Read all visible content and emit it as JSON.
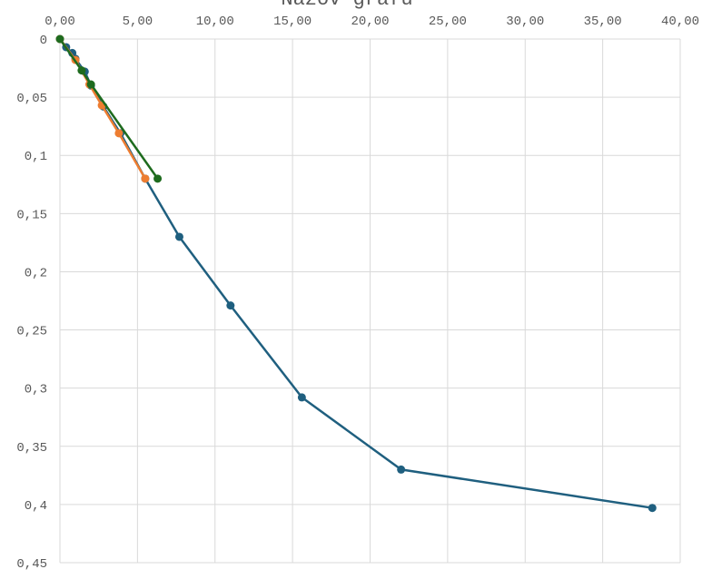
{
  "chart_data": {
    "type": "line",
    "title": "Názov grafu",
    "xlabel": "",
    "ylabel": "",
    "xlim": [
      0,
      40
    ],
    "ylim": [
      0,
      0.45
    ],
    "x_axis_position": "top",
    "y_axis_inverted": true,
    "grid": true,
    "x_ticks": [
      {
        "value": 0,
        "label": "0,00"
      },
      {
        "value": 5,
        "label": "5,00"
      },
      {
        "value": 10,
        "label": "10,00"
      },
      {
        "value": 15,
        "label": "15,00"
      },
      {
        "value": 20,
        "label": "20,00"
      },
      {
        "value": 25,
        "label": "25,00"
      },
      {
        "value": 30,
        "label": "30,00"
      },
      {
        "value": 35,
        "label": "35,00"
      },
      {
        "value": 40,
        "label": "40,00"
      }
    ],
    "y_ticks": [
      {
        "value": 0,
        "label": "0"
      },
      {
        "value": 0.05,
        "label": "0,05"
      },
      {
        "value": 0.1,
        "label": "0,1"
      },
      {
        "value": 0.15,
        "label": "0,15"
      },
      {
        "value": 0.2,
        "label": "0,2"
      },
      {
        "value": 0.25,
        "label": "0,25"
      },
      {
        "value": 0.3,
        "label": "0,3"
      },
      {
        "value": 0.35,
        "label": "0,35"
      },
      {
        "value": 0.4,
        "label": "0,4"
      },
      {
        "value": 0.45,
        "label": "0,45"
      }
    ],
    "series": [
      {
        "color": "#1f5f7f",
        "points": [
          {
            "x": 0.0,
            "y": 0.0
          },
          {
            "x": 0.4,
            "y": 0.007
          },
          {
            "x": 0.8,
            "y": 0.012
          },
          {
            "x": 1.0,
            "y": 0.017
          },
          {
            "x": 1.6,
            "y": 0.028
          },
          {
            "x": 2.0,
            "y": 0.04
          },
          {
            "x": 2.8,
            "y": 0.058
          },
          {
            "x": 3.9,
            "y": 0.081
          },
          {
            "x": 5.5,
            "y": 0.12
          },
          {
            "x": 7.7,
            "y": 0.17
          },
          {
            "x": 11.0,
            "y": 0.229
          },
          {
            "x": 15.6,
            "y": 0.308
          },
          {
            "x": 22.0,
            "y": 0.37
          },
          {
            "x": 38.2,
            "y": 0.403
          }
        ]
      },
      {
        "color": "#ed7d31",
        "points": [
          {
            "x": 0.0,
            "y": 0.0
          },
          {
            "x": 1.0,
            "y": 0.018
          },
          {
            "x": 1.9,
            "y": 0.039
          },
          {
            "x": 2.7,
            "y": 0.057
          },
          {
            "x": 3.8,
            "y": 0.081
          },
          {
            "x": 5.5,
            "y": 0.12
          }
        ]
      },
      {
        "color": "#1e6b1e",
        "points": [
          {
            "x": 0.0,
            "y": 0.0
          },
          {
            "x": 1.4,
            "y": 0.027
          },
          {
            "x": 2.0,
            "y": 0.039
          },
          {
            "x": 6.3,
            "y": 0.12
          }
        ]
      }
    ]
  }
}
